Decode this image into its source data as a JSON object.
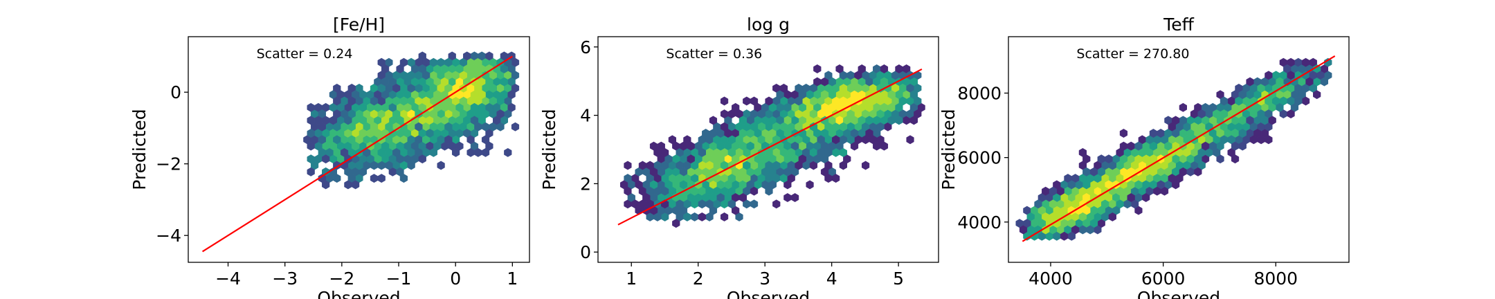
{
  "chart_data": [
    {
      "type": "hexbin",
      "title": "[Fe/H]",
      "xlabel": "Observed",
      "ylabel": "Predicted",
      "annotation": "Scatter = 0.24",
      "xlim": [
        -4.7,
        1.3
      ],
      "ylim": [
        -4.75,
        1.55
      ],
      "xticks": [
        -4,
        -3,
        -2,
        -1,
        0,
        1
      ],
      "yticks": [
        -4,
        -2,
        0
      ],
      "fit_line": {
        "x": [
          -4.45,
          1.0
        ],
        "y": [
          -4.45,
          1.0
        ],
        "color": "#ff0000"
      },
      "density": [
        {
          "x": -0.3,
          "y": -0.3,
          "sx": 0.9,
          "sy": 0.75,
          "n": 1800,
          "rho": 0.55
        },
        {
          "x": -1.5,
          "y": -1.2,
          "sx": 0.5,
          "sy": 0.55,
          "n": 500,
          "rho": 0.2
        },
        {
          "x": 0.2,
          "y": 0.2,
          "sx": 0.35,
          "sy": 0.35,
          "n": 300,
          "rho": 0.3
        }
      ],
      "clip": {
        "x": [
          -2.6,
          1.0
        ],
        "y": [
          -2.6,
          1.0
        ]
      },
      "grid": false
    },
    {
      "type": "hexbin",
      "title": "log g",
      "xlabel": "Observed",
      "ylabel": "Predicted",
      "annotation": "Scatter = 0.36",
      "xlim": [
        0.5,
        5.6
      ],
      "ylim": [
        -0.3,
        6.3
      ],
      "xticks": [
        1,
        2,
        3,
        4,
        5
      ],
      "yticks": [
        0,
        2,
        4,
        6
      ],
      "fit_line": {
        "x": [
          0.8,
          5.35
        ],
        "y": [
          0.8,
          5.35
        ],
        "color": "#ff0000"
      },
      "density": [
        {
          "x": 4.25,
          "y": 4.3,
          "sx": 0.55,
          "sy": 0.45,
          "n": 1700,
          "rho": 0.5
        },
        {
          "x": 2.3,
          "y": 2.4,
          "sx": 0.55,
          "sy": 0.65,
          "n": 1300,
          "rho": 0.55
        },
        {
          "x": 3.3,
          "y": 3.2,
          "sx": 0.6,
          "sy": 0.6,
          "n": 500,
          "rho": 0.3
        }
      ],
      "clip": {
        "x": [
          0.9,
          5.3
        ],
        "y": [
          0.9,
          5.3
        ]
      },
      "grid": false
    },
    {
      "type": "hexbin",
      "title": "Teff",
      "xlabel": "Observed",
      "ylabel": "Predicted",
      "annotation": "Scatter = 270.80",
      "xlim": [
        3250,
        9300
      ],
      "ylim": [
        2750,
        9750
      ],
      "xticks": [
        4000,
        6000,
        8000
      ],
      "yticks": [
        4000,
        6000,
        8000
      ],
      "fit_line": {
        "x": [
          3500,
          9050
        ],
        "y": [
          3400,
          9150
        ],
        "color": "#ff0000"
      },
      "density": [
        {
          "x": 5600,
          "y": 5600,
          "sx": 850,
          "sy": 850,
          "n": 2200,
          "rho": 0.9
        },
        {
          "x": 4300,
          "y": 4300,
          "sx": 400,
          "sy": 400,
          "n": 700,
          "rho": 0.6
        },
        {
          "x": 7700,
          "y": 7700,
          "sx": 650,
          "sy": 650,
          "n": 700,
          "rho": 0.85
        }
      ],
      "clip": {
        "x": [
          3500,
          9050
        ],
        "y": [
          3500,
          9050
        ]
      },
      "grid": false
    }
  ],
  "colors": {
    "fit_line": "#ff0000",
    "colormap": [
      "#440154",
      "#482878",
      "#3e4989",
      "#31688e",
      "#26828e",
      "#1f9e89",
      "#35b779",
      "#6ece58",
      "#b5de2b",
      "#fde725"
    ]
  }
}
